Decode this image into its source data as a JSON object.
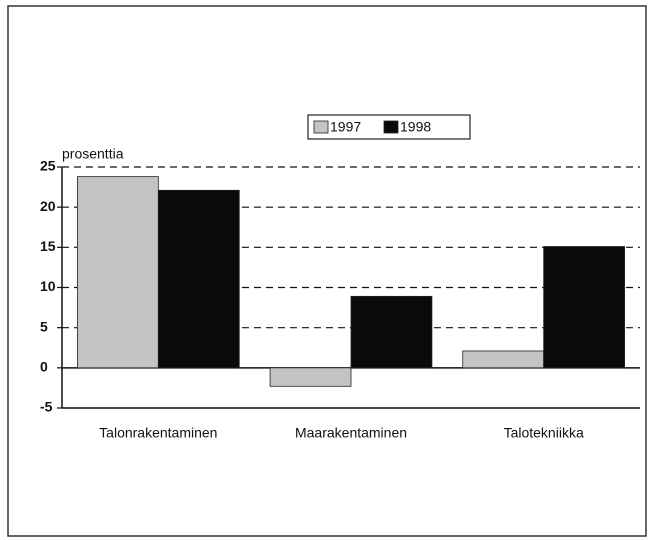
{
  "chart_data": {
    "type": "bar",
    "y_label": "prosenttia",
    "categories": [
      "Talonrakentaminen",
      "Maarakentaminen",
      "Talotekniikka"
    ],
    "series": [
      {
        "name": "1997",
        "color": "#c4c4c4",
        "values": [
          23.8,
          -2.3,
          2.1
        ]
      },
      {
        "name": "1998",
        "color": "#0a0a0a",
        "values": [
          22.1,
          8.9,
          15.1
        ]
      }
    ],
    "ylim": [
      -5,
      25
    ],
    "yticks": [
      -5,
      0,
      5,
      10,
      15,
      20,
      25
    ],
    "grid": true,
    "legend": "top"
  }
}
